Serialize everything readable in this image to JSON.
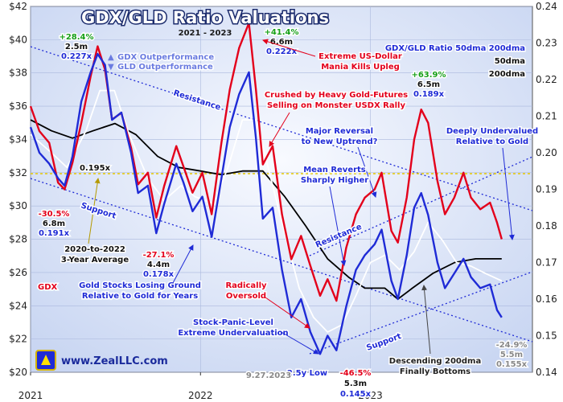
{
  "chart_data": {
    "type": "line",
    "title": "GDX/GLD Ratio Valuations",
    "subtitle": "2021 - 2023",
    "x_axis": {
      "range": [
        "2021-01-01",
        "2023-12-15"
      ],
      "ticks": [
        "2021",
        "2022",
        "2023"
      ]
    },
    "y_left": {
      "range": [
        20,
        42
      ],
      "ticks": [
        "$20",
        "$22",
        "$24",
        "$26",
        "$28",
        "$30",
        "$32",
        "$34",
        "$36",
        "$38",
        "$40",
        "$42"
      ]
    },
    "y_right": {
      "range": [
        0.14,
        0.24
      ],
      "ticks": [
        "0.14",
        "0.15",
        "0.16",
        "0.17",
        "0.18",
        "0.19",
        "0.20",
        "0.21",
        "0.22",
        "0.23",
        "0.24"
      ]
    },
    "grid": true,
    "legend": [
      "GDX Outperformance",
      "GLD Outperformance"
    ],
    "series": [
      {
        "name": "GDX",
        "axis": "left",
        "color": "#e3001b",
        "points": [
          [
            "2021-01-01",
            36.0
          ],
          [
            "2021-01-20",
            34.5
          ],
          [
            "2021-02-10",
            33.8
          ],
          [
            "2021-03-01",
            31.4
          ],
          [
            "2021-03-15",
            31.0
          ],
          [
            "2021-04-01",
            32.6
          ],
          [
            "2021-04-20",
            35.0
          ],
          [
            "2021-05-10",
            37.8
          ],
          [
            "2021-05-25",
            39.6
          ],
          [
            "2021-06-10",
            38.2
          ],
          [
            "2021-06-25",
            35.2
          ],
          [
            "2021-07-15",
            35.6
          ],
          [
            "2021-08-05",
            33.5
          ],
          [
            "2021-08-20",
            31.3
          ],
          [
            "2021-09-10",
            32.0
          ],
          [
            "2021-09-28",
            29.3
          ],
          [
            "2021-10-15",
            31.2
          ],
          [
            "2021-11-10",
            33.6
          ],
          [
            "2021-11-25",
            32.4
          ],
          [
            "2021-12-15",
            30.8
          ],
          [
            "2022-01-05",
            32.0
          ],
          [
            "2022-01-25",
            29.5
          ],
          [
            "2022-02-15",
            33.8
          ],
          [
            "2022-03-05",
            37.0
          ],
          [
            "2022-03-25",
            39.5
          ],
          [
            "2022-04-15",
            41.0
          ],
          [
            "2022-04-30",
            37.0
          ],
          [
            "2022-05-15",
            32.5
          ],
          [
            "2022-06-05",
            33.6
          ],
          [
            "2022-06-25",
            29.5
          ],
          [
            "2022-07-15",
            26.8
          ],
          [
            "2022-08-05",
            28.2
          ],
          [
            "2022-08-25",
            26.4
          ],
          [
            "2022-09-15",
            24.6
          ],
          [
            "2022-10-01",
            25.6
          ],
          [
            "2022-10-20",
            24.3
          ],
          [
            "2022-11-10",
            27.5
          ],
          [
            "2022-12-01",
            29.5
          ],
          [
            "2022-12-20",
            30.5
          ],
          [
            "2023-01-10",
            31.0
          ],
          [
            "2023-01-25",
            32.0
          ],
          [
            "2023-02-15",
            28.5
          ],
          [
            "2023-03-01",
            27.8
          ],
          [
            "2023-03-20",
            30.5
          ],
          [
            "2023-04-05",
            34.0
          ],
          [
            "2023-04-20",
            35.8
          ],
          [
            "2023-05-05",
            35.0
          ],
          [
            "2023-05-25",
            31.5
          ],
          [
            "2023-06-10",
            29.5
          ],
          [
            "2023-06-30",
            30.5
          ],
          [
            "2023-07-20",
            32.0
          ],
          [
            "2023-08-05",
            30.5
          ],
          [
            "2023-08-25",
            29.8
          ],
          [
            "2023-09-15",
            30.2
          ],
          [
            "2023-09-30",
            29.0
          ],
          [
            "2023-10-10",
            28.0
          ]
        ]
      },
      {
        "name": "GDX/GLD Ratio",
        "axis": "right",
        "color": "#1f2bd6",
        "points": [
          [
            "2021-01-01",
            0.207
          ],
          [
            "2021-01-20",
            0.2
          ],
          [
            "2021-02-10",
            0.197
          ],
          [
            "2021-03-01",
            0.193
          ],
          [
            "2021-03-15",
            0.191
          ],
          [
            "2021-04-01",
            0.199
          ],
          [
            "2021-04-20",
            0.214
          ],
          [
            "2021-05-10",
            0.222
          ],
          [
            "2021-05-25",
            0.227
          ],
          [
            "2021-06-10",
            0.224
          ],
          [
            "2021-06-25",
            0.209
          ],
          [
            "2021-07-15",
            0.211
          ],
          [
            "2021-08-05",
            0.2
          ],
          [
            "2021-08-20",
            0.189
          ],
          [
            "2021-09-10",
            0.191
          ],
          [
            "2021-09-28",
            0.178
          ],
          [
            "2021-10-15",
            0.186
          ],
          [
            "2021-11-10",
            0.197
          ],
          [
            "2021-11-25",
            0.192
          ],
          [
            "2021-12-15",
            0.184
          ],
          [
            "2022-01-05",
            0.188
          ],
          [
            "2022-01-25",
            0.177
          ],
          [
            "2022-02-15",
            0.193
          ],
          [
            "2022-03-05",
            0.207
          ],
          [
            "2022-03-25",
            0.216
          ],
          [
            "2022-04-15",
            0.222
          ],
          [
            "2022-04-30",
            0.204
          ],
          [
            "2022-05-15",
            0.182
          ],
          [
            "2022-06-05",
            0.185
          ],
          [
            "2022-06-25",
            0.168
          ],
          [
            "2022-07-15",
            0.155
          ],
          [
            "2022-08-05",
            0.16
          ],
          [
            "2022-08-25",
            0.151
          ],
          [
            "2022-09-15",
            0.145
          ],
          [
            "2022-10-01",
            0.15
          ],
          [
            "2022-10-20",
            0.146
          ],
          [
            "2022-11-10",
            0.158
          ],
          [
            "2022-12-01",
            0.168
          ],
          [
            "2022-12-20",
            0.172
          ],
          [
            "2023-01-10",
            0.175
          ],
          [
            "2023-01-25",
            0.179
          ],
          [
            "2023-02-15",
            0.165
          ],
          [
            "2023-03-01",
            0.16
          ],
          [
            "2023-03-20",
            0.172
          ],
          [
            "2023-04-05",
            0.185
          ],
          [
            "2023-04-20",
            0.189
          ],
          [
            "2023-05-05",
            0.183
          ],
          [
            "2023-05-25",
            0.17
          ],
          [
            "2023-06-10",
            0.163
          ],
          [
            "2023-06-30",
            0.167
          ],
          [
            "2023-07-20",
            0.171
          ],
          [
            "2023-08-05",
            0.166
          ],
          [
            "2023-08-25",
            0.163
          ],
          [
            "2023-09-15",
            0.164
          ],
          [
            "2023-09-30",
            0.157
          ],
          [
            "2023-10-10",
            0.155
          ]
        ]
      },
      {
        "name": "50dma",
        "axis": "right",
        "color": "#ffffff",
        "points": [
          [
            "2021-01-01",
            0.205
          ],
          [
            "2021-02-15",
            0.2
          ],
          [
            "2021-03-20",
            0.196
          ],
          [
            "2021-04-30",
            0.206
          ],
          [
            "2021-05-30",
            0.217
          ],
          [
            "2021-06-30",
            0.217
          ],
          [
            "2021-08-01",
            0.205
          ],
          [
            "2021-09-10",
            0.193
          ],
          [
            "2021-10-15",
            0.187
          ],
          [
            "2021-11-20",
            0.191
          ],
          [
            "2021-12-20",
            0.188
          ],
          [
            "2022-01-30",
            0.186
          ],
          [
            "2022-03-01",
            0.196
          ],
          [
            "2022-04-01",
            0.209
          ],
          [
            "2022-05-01",
            0.209
          ],
          [
            "2022-06-01",
            0.193
          ],
          [
            "2022-07-01",
            0.178
          ],
          [
            "2022-08-01",
            0.163
          ],
          [
            "2022-09-01",
            0.155
          ],
          [
            "2022-10-01",
            0.151
          ],
          [
            "2022-11-01",
            0.153
          ],
          [
            "2022-12-01",
            0.161
          ],
          [
            "2023-01-01",
            0.17
          ],
          [
            "2023-02-01",
            0.172
          ],
          [
            "2023-03-05",
            0.168
          ],
          [
            "2023-04-05",
            0.173
          ],
          [
            "2023-05-05",
            0.181
          ],
          [
            "2023-06-05",
            0.176
          ],
          [
            "2023-07-05",
            0.17
          ],
          [
            "2023-08-05",
            0.169
          ],
          [
            "2023-09-05",
            0.167
          ],
          [
            "2023-10-10",
            0.165
          ]
        ]
      },
      {
        "name": "200dma",
        "axis": "right",
        "color": "#000000",
        "points": [
          [
            "2021-01-01",
            0.209
          ],
          [
            "2021-02-15",
            0.206
          ],
          [
            "2021-04-01",
            0.204
          ],
          [
            "2021-05-15",
            0.206
          ],
          [
            "2021-07-01",
            0.208
          ],
          [
            "2021-08-15",
            0.205
          ],
          [
            "2021-10-01",
            0.199
          ],
          [
            "2021-11-15",
            0.196
          ],
          [
            "2022-01-01",
            0.195
          ],
          [
            "2022-02-15",
            0.194
          ],
          [
            "2022-04-01",
            0.195
          ],
          [
            "2022-05-15",
            0.195
          ],
          [
            "2022-07-01",
            0.188
          ],
          [
            "2022-08-15",
            0.18
          ],
          [
            "2022-10-01",
            0.171
          ],
          [
            "2022-11-15",
            0.166
          ],
          [
            "2022-12-20",
            0.163
          ],
          [
            "2023-02-01",
            0.163
          ],
          [
            "2023-03-01",
            0.16
          ],
          [
            "2023-04-01",
            0.163
          ],
          [
            "2023-05-15",
            0.167
          ],
          [
            "2023-07-01",
            0.17
          ],
          [
            "2023-08-15",
            0.171
          ],
          [
            "2023-10-10",
            0.171
          ]
        ]
      }
    ],
    "reference_lines": [
      {
        "name": "2020-to-2022 3-Year Average",
        "axis": "right",
        "value": 0.195,
        "label": "0.195x"
      }
    ],
    "annotations": {
      "peak_2021": [
        "+28.4%",
        "2.5m",
        "0.227x"
      ],
      "peak_2022": [
        "+41.4%",
        "6.6m",
        "0.222x"
      ],
      "peak_2023": [
        "+63.9%",
        "6.5m",
        "0.189x"
      ],
      "low_mar_2021": [
        "-30.5%",
        "6.8m",
        "0.191x"
      ],
      "low_sep_2021": [
        "-27.1%",
        "4.4m",
        "0.178x"
      ],
      "low_2022": [
        "2.5y Low",
        "-46.5%",
        "5.3m",
        "0.145x"
      ],
      "current": [
        "-24.9%",
        "5.5m",
        "0.155x"
      ],
      "notes": [
        "Extreme US-Dollar Mania Kills Upleg",
        "Crushed by Heavy Gold-Futures Selling on Monster USDX Rally",
        "Major Reversal to New Uptrend?",
        "Mean Reverts Sharply Higher",
        "Deeply Undervalued Relative to Gold",
        "Radically Oversold",
        "Gold Stocks Losing Ground Relative to Gold for Years",
        "Stock-Panic-Level Extreme Undervaluation",
        "Descending 200dma Finally Bottoms",
        "2020-to-2022 3-Year Average",
        "GDX/GLD Ratio 50dma 200dma"
      ],
      "date_stamp": "9.27.2023",
      "gdx_label": "GDX",
      "resistance": "Resistance",
      "support": "Support",
      "website": "www.ZealLLC.com"
    }
  },
  "colors": {
    "gdx": "#e3001b",
    "ratio": "#1f2bd6",
    "ma50": "#ffffff",
    "ma200": "#000000",
    "background": "#dfe7f7",
    "trend": "#1f2bd6",
    "average": "#ffe000"
  }
}
